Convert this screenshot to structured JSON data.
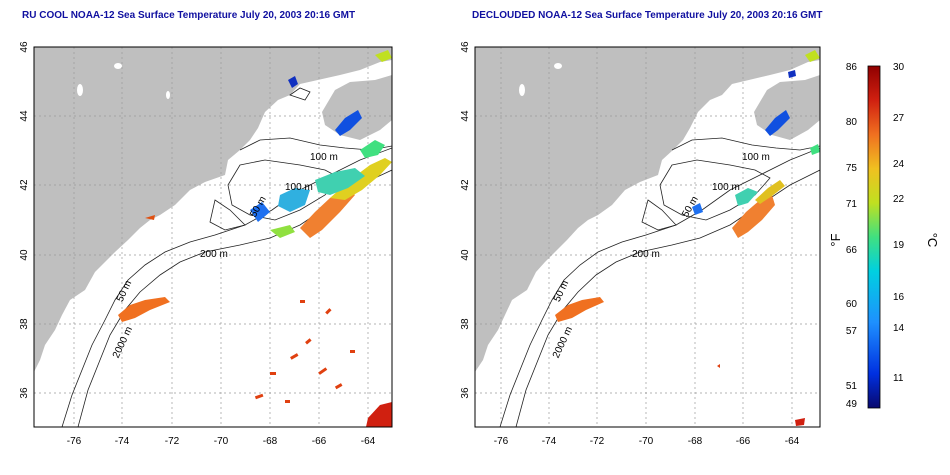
{
  "titles": {
    "left": "RU COOL NOAA-12 Sea Surface Temperature July 20, 2003 20:16 GMT",
    "right": "DECLOUDED NOAA-12 Sea Surface Temperature July 20, 2003 20:16 GMT"
  },
  "axes": {
    "lat_ticks": [
      "46",
      "44",
      "42",
      "40",
      "38",
      "36"
    ],
    "lon_ticks": [
      "-76",
      "-74",
      "-72",
      "-70",
      "-68",
      "-66",
      "-64"
    ]
  },
  "contour_labels": [
    "100 m",
    "100 m",
    "50 m",
    "200 m",
    "50 m",
    "2000 m"
  ],
  "colorbar": {
    "f_label": "°F",
    "c_label": "°C",
    "f_ticks": [
      "86",
      "80",
      "75",
      "71",
      "66",
      "60",
      "57",
      "51",
      "49"
    ],
    "c_ticks": [
      "30",
      "27",
      "24",
      "22",
      "19",
      "16",
      "14",
      "11"
    ],
    "colors": [
      "#08086e",
      "#0030e0",
      "#1e90ff",
      "#00d0e0",
      "#40e080",
      "#c0e020",
      "#f0c020",
      "#f07020",
      "#d02010",
      "#900000"
    ]
  }
}
